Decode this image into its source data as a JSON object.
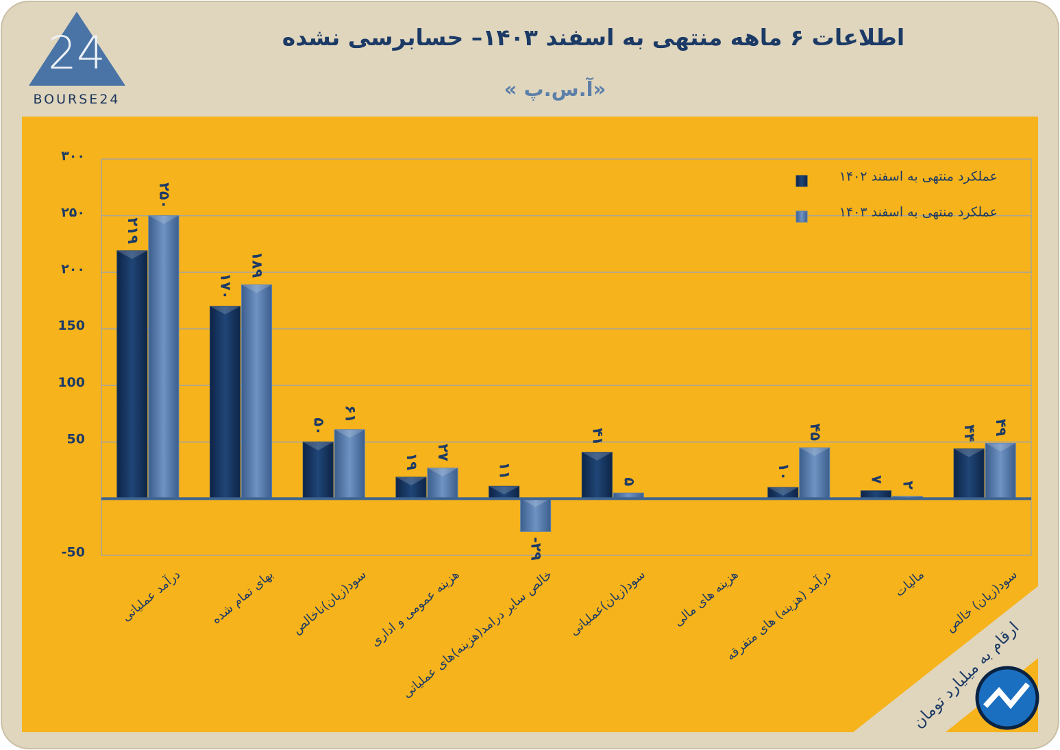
{
  "logo": {
    "mark": "24",
    "text": "BOURSE24"
  },
  "chart_data": {
    "type": "bar",
    "title": "اطلاعات ۶ ماهه منتهی به اسفند ۱۴۰۳– حسابرسی نشده",
    "subtitle": "« آ.س.پ»",
    "note": "ارقام به میلیارد تومان",
    "categories": [
      "درآمد عملیاتی",
      "بهای تمام شده",
      "سود(زیان)ناخالص",
      "هزینه عمومی و اداری",
      "خالص سایر درامد(هزینه)های عملیاتی",
      "سود(زیان)عملیاتی",
      "هزینه های مالی",
      "درآمد (هزینه) های متفرقه",
      "مالیات",
      "سود(زیان) خالص"
    ],
    "series": [
      {
        "name": "عملکرد منتهی به اسفند ۱۴۰۲",
        "color": "#1b3d6b",
        "values": [
          219,
          170,
          50,
          19,
          11,
          41,
          null,
          10,
          7,
          44
        ],
        "value_labels": [
          "۲۱۹",
          "۱۷۰",
          "۵۰",
          "۱۹",
          "۱۱",
          "۴۱",
          null,
          "۱۰",
          "۷",
          "۴۴"
        ]
      },
      {
        "name": "عملکرد منتهی به اسفند ۱۴۰۳",
        "color": "#5b80b0",
        "values": [
          250,
          189,
          61,
          27,
          -29,
          5,
          null,
          45,
          2,
          49
        ],
        "value_labels": [
          "۲۵۰",
          "۱۸۹",
          "۶۱",
          "۲۷",
          "-۲۹",
          "۵",
          null,
          "۴۵",
          "۲",
          "۴۹"
        ]
      }
    ],
    "ylim": [
      -50,
      300
    ],
    "yticks": [
      -50,
      50,
      100,
      150,
      {
        "value": 200,
        "label": "۲۰۰"
      },
      {
        "value": 250,
        "label": "۲۵۰"
      },
      {
        "value": 300,
        "label": "۳۰۰"
      }
    ],
    "grid": true,
    "legend": "top-right"
  }
}
